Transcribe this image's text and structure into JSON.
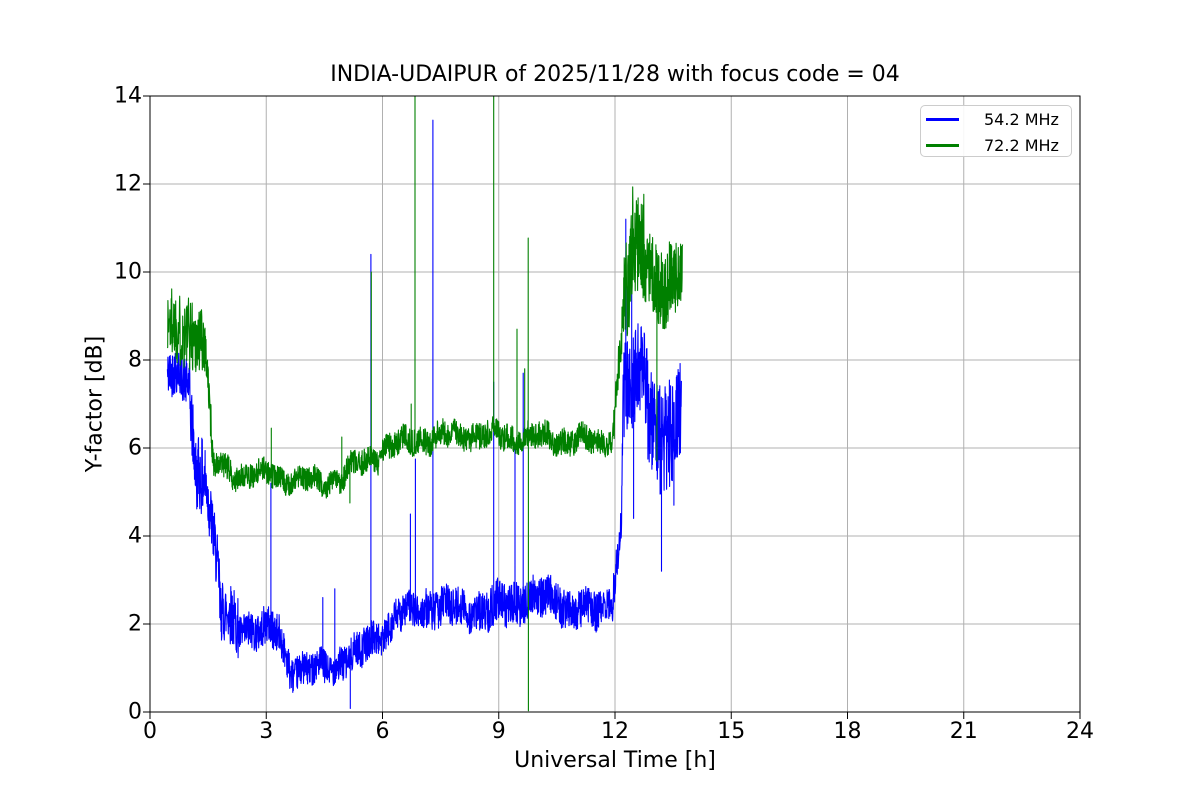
{
  "chart_data": {
    "type": "line",
    "title": "INDIA-UDAIPUR of 2025/11/28 with focus code = 04",
    "xlabel": "Universal Time [h]",
    "ylabel": "Y-factor [dB]",
    "xlim": [
      0,
      24
    ],
    "ylim": [
      0,
      14
    ],
    "xticks": [
      0,
      3,
      6,
      9,
      12,
      15,
      18,
      21,
      24
    ],
    "yticks": [
      0,
      2,
      4,
      6,
      8,
      10,
      12,
      14
    ],
    "grid": true,
    "grid_color": "#b0b0b0",
    "frame_color": "#000000",
    "background": "#ffffff",
    "legend": {
      "position": "upper right",
      "entries": [
        {
          "label": "54.2 MHz",
          "color": "#0000ff"
        },
        {
          "label": "72.2 MHz",
          "color": "#008000"
        }
      ]
    },
    "series": [
      {
        "name": "54.2 MHz",
        "color": "#0000ff",
        "seed": 42,
        "x_start": 0.45,
        "x_end": 13.72,
        "sample_step_h": 0.0065,
        "baseline_segments": [
          [
            0.45,
            1.02,
            7.7,
            7.5,
            0.55
          ],
          [
            1.02,
            1.22,
            7.2,
            5.1,
            0.8
          ],
          [
            1.22,
            1.48,
            5.6,
            5.3,
            0.9
          ],
          [
            1.48,
            1.8,
            5.0,
            2.8,
            0.7
          ],
          [
            1.8,
            2.3,
            2.3,
            2.0,
            0.7
          ],
          [
            2.3,
            3.35,
            1.9,
            1.8,
            0.45
          ],
          [
            3.35,
            3.6,
            1.7,
            1.1,
            0.4
          ],
          [
            3.6,
            4.15,
            1.0,
            0.9,
            0.38
          ],
          [
            4.15,
            4.9,
            0.95,
            1.1,
            0.38
          ],
          [
            4.9,
            5.5,
            1.15,
            1.35,
            0.4
          ],
          [
            5.5,
            6.3,
            1.5,
            2.0,
            0.4
          ],
          [
            6.3,
            7.1,
            2.15,
            2.35,
            0.4
          ],
          [
            7.1,
            8.6,
            2.4,
            2.3,
            0.45
          ],
          [
            8.6,
            9.6,
            2.3,
            2.5,
            0.5
          ],
          [
            9.6,
            10.6,
            2.6,
            2.55,
            0.45
          ],
          [
            10.6,
            11.55,
            2.45,
            2.25,
            0.45
          ],
          [
            11.55,
            11.95,
            2.3,
            2.6,
            0.4
          ],
          [
            11.95,
            12.17,
            2.8,
            4.3,
            0.45
          ],
          [
            12.17,
            12.21,
            4.5,
            7.2,
            0.4
          ],
          [
            12.21,
            12.55,
            7.2,
            7.6,
            1.1
          ],
          [
            12.55,
            12.85,
            7.8,
            7.5,
            1.0
          ],
          [
            12.85,
            13.15,
            6.9,
            6.3,
            1.1
          ],
          [
            13.15,
            13.5,
            6.2,
            6.4,
            1.3
          ],
          [
            13.5,
            13.72,
            6.6,
            6.8,
            1.1
          ]
        ],
        "spikes": [
          [
            3.12,
            5.2
          ],
          [
            4.46,
            2.6
          ],
          [
            4.77,
            2.8
          ],
          [
            5.7,
            10.4
          ],
          [
            6.72,
            4.5
          ],
          [
            6.85,
            5.75
          ],
          [
            7.3,
            13.45
          ],
          [
            8.87,
            7.5
          ],
          [
            9.42,
            6.0
          ],
          [
            9.63,
            7.7
          ],
          [
            12.28,
            11.2
          ],
          [
            12.43,
            10.4
          ]
        ],
        "dips": [
          [
            5.17,
            0.08
          ],
          [
            12.48,
            4.4
          ],
          [
            13.2,
            3.2
          ],
          [
            13.52,
            4.7
          ]
        ]
      },
      {
        "name": "72.2 MHz",
        "color": "#008000",
        "seed": 1337,
        "x_start": 0.45,
        "x_end": 13.75,
        "sample_step_h": 0.0065,
        "baseline_segments": [
          [
            0.45,
            1.42,
            8.75,
            8.55,
            0.85
          ],
          [
            1.42,
            1.62,
            8.4,
            5.85,
            0.5
          ],
          [
            1.62,
            2.1,
            5.6,
            5.45,
            0.3
          ],
          [
            2.1,
            3.4,
            5.42,
            5.38,
            0.28
          ],
          [
            3.4,
            4.4,
            5.32,
            5.22,
            0.27
          ],
          [
            4.4,
            5.0,
            5.22,
            5.35,
            0.27
          ],
          [
            5.0,
            5.9,
            5.4,
            5.85,
            0.3
          ],
          [
            5.9,
            6.8,
            5.95,
            6.18,
            0.3
          ],
          [
            6.8,
            8.2,
            6.2,
            6.3,
            0.3
          ],
          [
            8.2,
            10.2,
            6.3,
            6.25,
            0.3
          ],
          [
            10.2,
            11.6,
            6.25,
            6.1,
            0.3
          ],
          [
            11.6,
            11.95,
            6.1,
            6.35,
            0.3
          ],
          [
            11.95,
            12.18,
            6.5,
            8.6,
            0.5
          ],
          [
            12.18,
            12.45,
            9.3,
            10.1,
            1.3
          ],
          [
            12.45,
            12.75,
            10.6,
            10.7,
            1.2
          ],
          [
            12.75,
            13.1,
            10.3,
            9.8,
            0.9
          ],
          [
            13.1,
            13.5,
            9.8,
            9.6,
            1.0
          ],
          [
            13.5,
            13.75,
            9.7,
            10.0,
            0.8
          ]
        ],
        "spikes": [
          [
            3.13,
            6.45
          ],
          [
            4.95,
            6.25
          ],
          [
            5.71,
            10.0
          ],
          [
            6.74,
            7.0
          ],
          [
            6.84,
            14.25
          ],
          [
            8.87,
            14.25
          ],
          [
            9.47,
            8.7
          ],
          [
            9.67,
            7.8
          ],
          [
            9.76,
            10.77
          ]
        ],
        "dips": [
          [
            5.16,
            4.75
          ],
          [
            9.765,
            0.03
          ],
          [
            13.08,
            5.7
          ]
        ]
      }
    ]
  }
}
